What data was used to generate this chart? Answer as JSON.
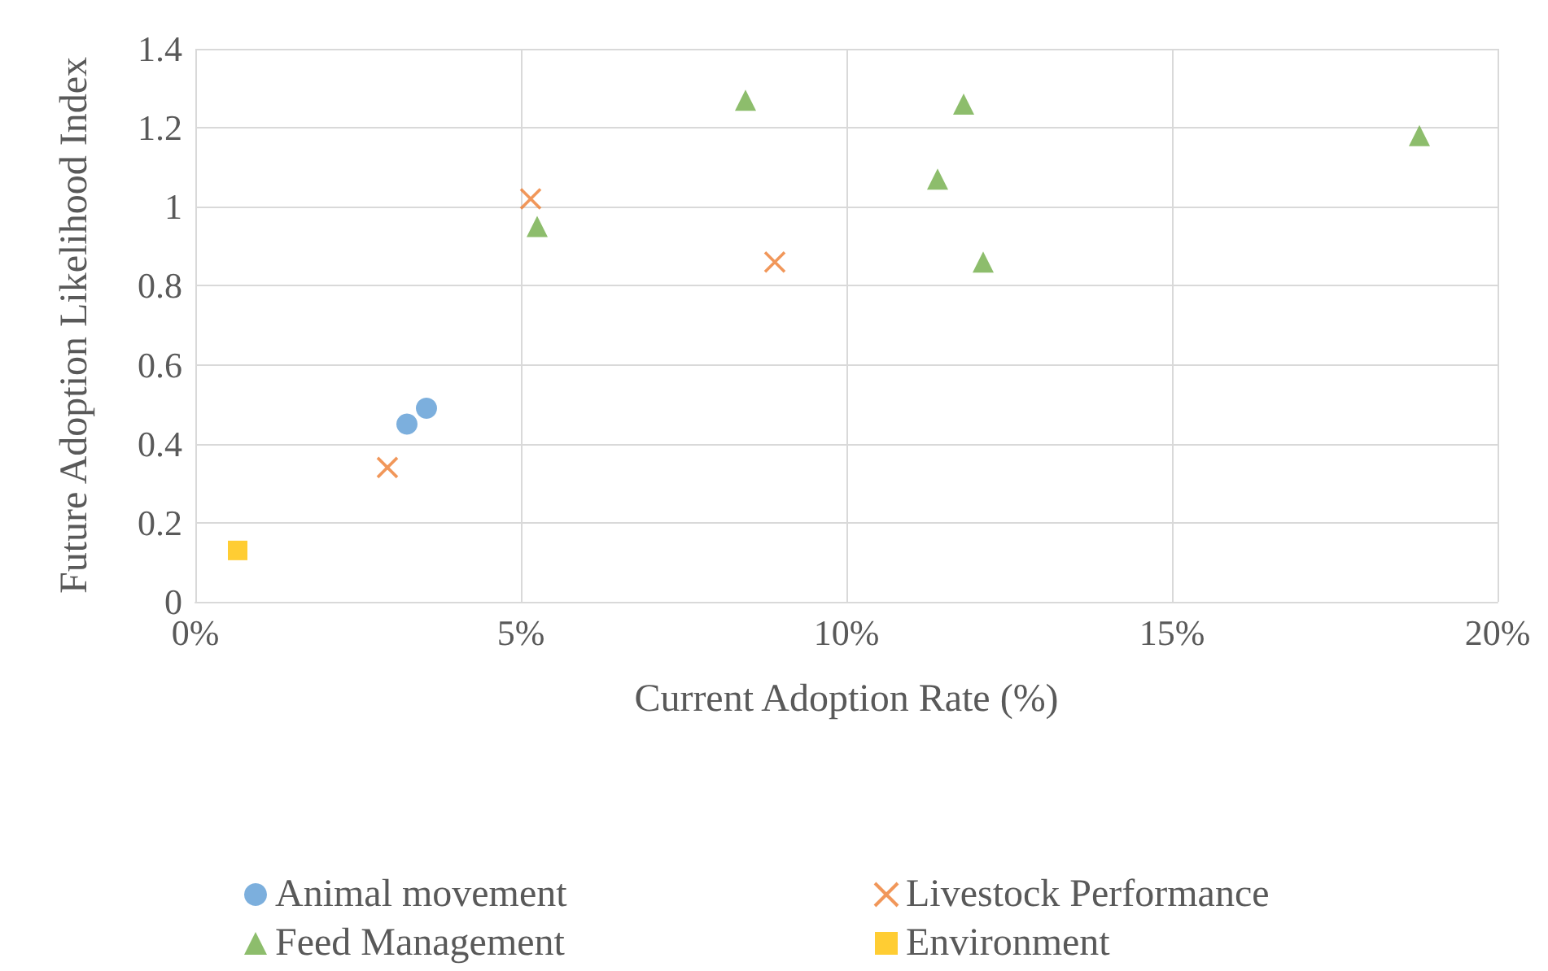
{
  "chart_data": {
    "type": "scatter",
    "xlabel": "Current Adoption Rate (%)",
    "ylabel": "Future Adoption Likelihood Index",
    "xlim": [
      0,
      20
    ],
    "xticks": [
      {
        "value": 0,
        "label": "0%"
      },
      {
        "value": 5,
        "label": "5%"
      },
      {
        "value": 10,
        "label": "10%"
      },
      {
        "value": 15,
        "label": "15%"
      },
      {
        "value": 20,
        "label": "20%"
      }
    ],
    "ylim": [
      0,
      1.4
    ],
    "yticks": [
      0,
      0.2,
      0.4,
      0.6,
      0.8,
      1,
      1.2,
      1.4
    ],
    "grid": true,
    "legend": "bottom",
    "series": [
      {
        "name": "Animal movement",
        "color": "#5b9bd5",
        "marker": "circle",
        "x": [
          3.25,
          3.55
        ],
        "values": [
          0.45,
          0.49
        ]
      },
      {
        "name": "Livestock Performance",
        "color": "#ed7d31",
        "marker": "cross",
        "x": [
          2.95,
          5.15,
          8.9
        ],
        "values": [
          0.34,
          1.02,
          0.86
        ]
      },
      {
        "name": "Feed Management",
        "color": "#70ad47",
        "marker": "triangle",
        "x": [
          5.25,
          8.45,
          11.4,
          11.8,
          12.1,
          18.8
        ],
        "values": [
          0.95,
          1.27,
          1.07,
          1.26,
          0.86,
          1.18
        ]
      },
      {
        "name": "Environment",
        "color": "#ffc000",
        "marker": "square",
        "x": [
          0.65
        ],
        "values": [
          0.13
        ]
      }
    ]
  }
}
